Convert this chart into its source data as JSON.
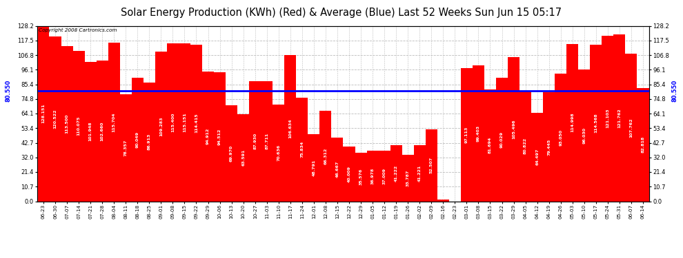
{
  "title": "Solar Energy Production (KWh) (Red) & Average (Blue) Last 52 Weeks Sun Jun 15 05:17",
  "copyright": "Copyright 2008 Cartronics.com",
  "average": 80.55,
  "bar_color": "#FF0000",
  "avg_line_color": "#0000FF",
  "background_color": "#FFFFFF",
  "grid_color": "#BBBBBB",
  "values": [
    128.151,
    120.522,
    113.5,
    110.075,
    101.948,
    102.66,
    115.704,
    78.357,
    90.049,
    86.913,
    109.283,
    115.4,
    115.151,
    114.415,
    94.912,
    94.512,
    69.97,
    63.591,
    87.93,
    87.711,
    70.636,
    106.634,
    75.834,
    48.791,
    66.312,
    46.667,
    40.009,
    35.576,
    36.978,
    37.009,
    41.222,
    33.787,
    41.221,
    52.507,
    1.413,
    0.0,
    97.113,
    99.403,
    81.694,
    90.029,
    105.496,
    80.822,
    64.497,
    79.445,
    93.05,
    114.998,
    96.03,
    114.568,
    121.103,
    121.762,
    107.762,
    82.818
  ],
  "labels": [
    "06-23",
    "06-30",
    "07-07",
    "07-14",
    "07-21",
    "07-28",
    "08-04",
    "08-11",
    "08-18",
    "08-25",
    "09-01",
    "09-08",
    "09-15",
    "09-22",
    "09-29",
    "10-06",
    "10-13",
    "10-20",
    "10-27",
    "11-03",
    "11-10",
    "11-17",
    "11-24",
    "12-01",
    "12-08",
    "12-15",
    "12-22",
    "12-29",
    "01-05",
    "01-12",
    "01-19",
    "01-26",
    "02-02",
    "02-09",
    "02-16",
    "02-23",
    "03-01",
    "03-08",
    "03-15",
    "03-22",
    "03-29",
    "04-05",
    "04-12",
    "04-19",
    "04-26",
    "05-03",
    "05-10",
    "05-17",
    "05-24",
    "05-31",
    "06-07",
    "06-14"
  ],
  "ylim": [
    0.0,
    128.2
  ],
  "yticks": [
    0.0,
    10.7,
    21.4,
    32.0,
    42.7,
    53.4,
    64.1,
    74.8,
    85.4,
    96.1,
    106.8,
    117.5,
    128.2
  ],
  "avg_label": "80.550",
  "title_fontsize": 10.5,
  "bar_value_fontsize": 4.5,
  "tick_fontsize": 6.0,
  "xlabel_fontsize": 5.2
}
